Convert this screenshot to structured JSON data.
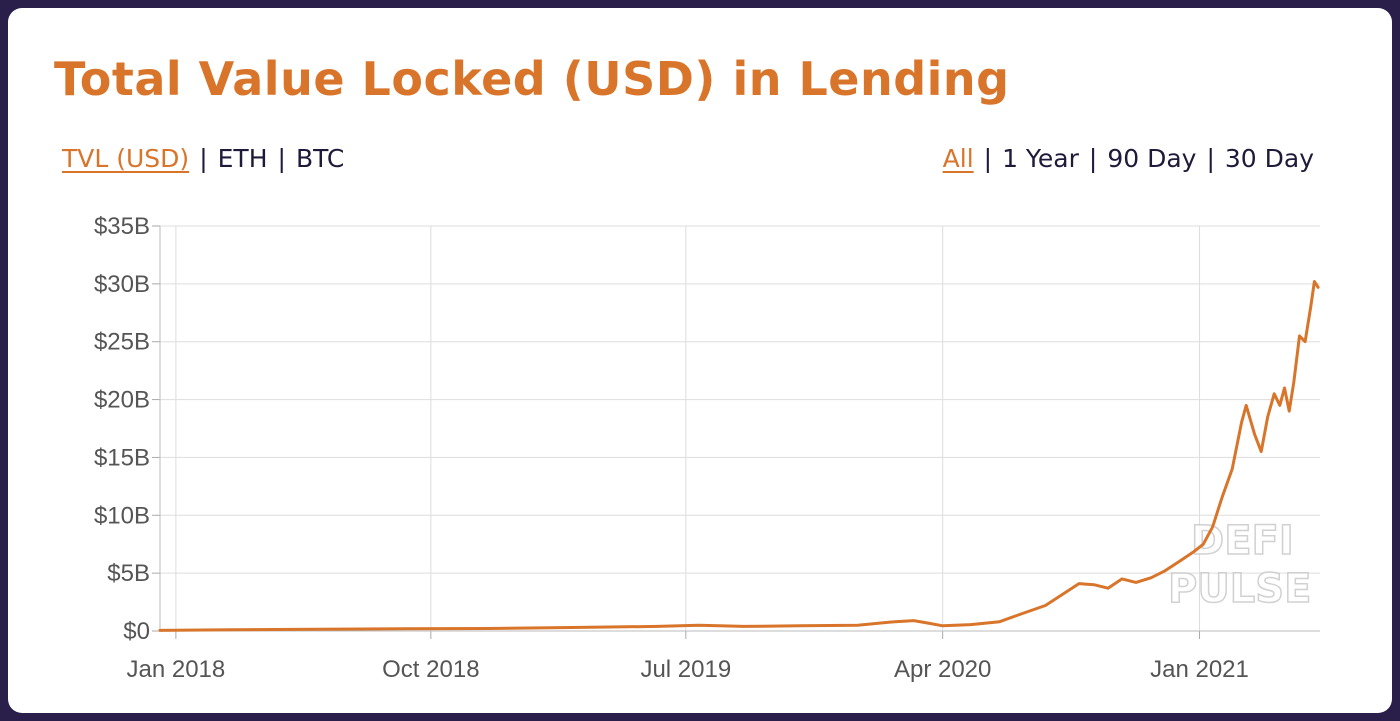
{
  "header": {
    "title": "Total Value Locked (USD) in Lending"
  },
  "controls": {
    "units": [
      {
        "label": "TVL (USD)",
        "active": true
      },
      {
        "label": "ETH",
        "active": false
      },
      {
        "label": "BTC",
        "active": false
      }
    ],
    "ranges": [
      {
        "label": "All",
        "active": true
      },
      {
        "label": "1 Year",
        "active": false
      },
      {
        "label": "90 Day",
        "active": false
      },
      {
        "label": "30 Day",
        "active": false
      }
    ],
    "separator": "|"
  },
  "watermark": {
    "line1": "DEFI",
    "line2": "PULSE"
  },
  "colors": {
    "accent": "#d8752b",
    "line": "#d8752b",
    "grid": "#dddddd",
    "text": "#1f1a3a"
  },
  "chart_data": {
    "type": "line",
    "title": "Total Value Locked (USD) in Lending",
    "xlabel": "",
    "ylabel": "",
    "xlim": [
      "2017-12-15",
      "2021-05-10"
    ],
    "ylim": [
      0,
      35
    ],
    "y_unit": "billions USD",
    "y_ticks": [
      0,
      5,
      10,
      15,
      20,
      25,
      30,
      35
    ],
    "y_tick_labels": [
      "$0",
      "$5B",
      "$10B",
      "$15B",
      "$20B",
      "$25B",
      "$30B",
      "$35B"
    ],
    "x_ticks": [
      "2018-01-01",
      "2018-10-01",
      "2019-07-01",
      "2020-04-01",
      "2021-01-01"
    ],
    "x_tick_labels": [
      "Jan 2018",
      "Oct 2018",
      "Jul 2019",
      "Apr 2020",
      "Jan 2021"
    ],
    "grid": true,
    "legend": "none",
    "series": [
      {
        "color": "#d8752b",
        "points": [
          [
            "2017-12-15",
            0.05
          ],
          [
            "2018-03-01",
            0.1
          ],
          [
            "2018-06-01",
            0.15
          ],
          [
            "2018-09-01",
            0.2
          ],
          [
            "2018-12-01",
            0.22
          ],
          [
            "2019-03-01",
            0.3
          ],
          [
            "2019-06-01",
            0.4
          ],
          [
            "2019-07-15",
            0.5
          ],
          [
            "2019-09-01",
            0.4
          ],
          [
            "2019-11-01",
            0.45
          ],
          [
            "2020-01-01",
            0.5
          ],
          [
            "2020-02-10",
            0.8
          ],
          [
            "2020-03-01",
            0.9
          ],
          [
            "2020-03-15",
            0.7
          ],
          [
            "2020-04-01",
            0.45
          ],
          [
            "2020-05-01",
            0.55
          ],
          [
            "2020-06-01",
            0.8
          ],
          [
            "2020-06-25",
            1.5
          ],
          [
            "2020-07-20",
            2.2
          ],
          [
            "2020-08-10",
            3.3
          ],
          [
            "2020-08-25",
            4.1
          ],
          [
            "2020-09-10",
            4.0
          ],
          [
            "2020-09-25",
            3.7
          ],
          [
            "2020-10-10",
            4.5
          ],
          [
            "2020-10-25",
            4.2
          ],
          [
            "2020-11-10",
            4.6
          ],
          [
            "2020-11-25",
            5.2
          ],
          [
            "2020-12-10",
            6.0
          ],
          [
            "2020-12-25",
            6.8
          ],
          [
            "2021-01-05",
            7.5
          ],
          [
            "2021-01-15",
            9.0
          ],
          [
            "2021-01-25",
            11.5
          ],
          [
            "2021-02-05",
            14.0
          ],
          [
            "2021-02-15",
            18.0
          ],
          [
            "2021-02-20",
            19.5
          ],
          [
            "2021-03-01",
            17.0
          ],
          [
            "2021-03-08",
            15.5
          ],
          [
            "2021-03-15",
            18.5
          ],
          [
            "2021-03-22",
            20.5
          ],
          [
            "2021-03-28",
            19.5
          ],
          [
            "2021-04-02",
            21.0
          ],
          [
            "2021-04-07",
            19.0
          ],
          [
            "2021-04-12",
            21.5
          ],
          [
            "2021-04-18",
            25.5
          ],
          [
            "2021-04-24",
            25.0
          ],
          [
            "2021-04-30",
            28.0
          ],
          [
            "2021-05-04",
            30.2
          ],
          [
            "2021-05-08",
            29.7
          ]
        ]
      }
    ]
  }
}
